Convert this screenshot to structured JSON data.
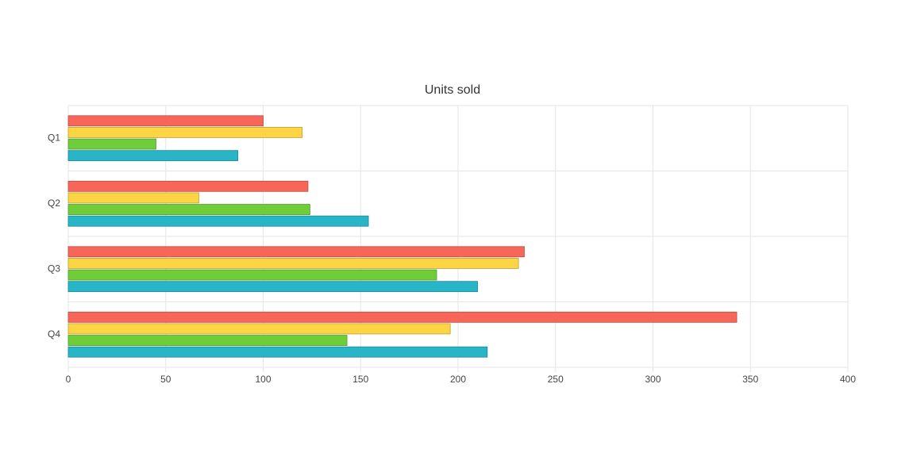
{
  "chart_data": {
    "type": "bar",
    "orientation": "horizontal",
    "title": "Units sold",
    "categories": [
      "Q1",
      "Q2",
      "Q3",
      "Q4"
    ],
    "series": [
      {
        "color": "#f8665a",
        "values": [
          100,
          123,
          234,
          343
        ]
      },
      {
        "color": "#fdd444",
        "values": [
          120,
          67,
          231,
          196
        ]
      },
      {
        "color": "#6fcd3a",
        "values": [
          45,
          124,
          189,
          143
        ]
      },
      {
        "color": "#27b5c7",
        "values": [
          87,
          154,
          210,
          215
        ]
      }
    ],
    "xlim": [
      0,
      400
    ],
    "xticks": [
      0,
      50,
      100,
      150,
      200,
      250,
      300,
      350,
      400
    ],
    "grid": true
  }
}
